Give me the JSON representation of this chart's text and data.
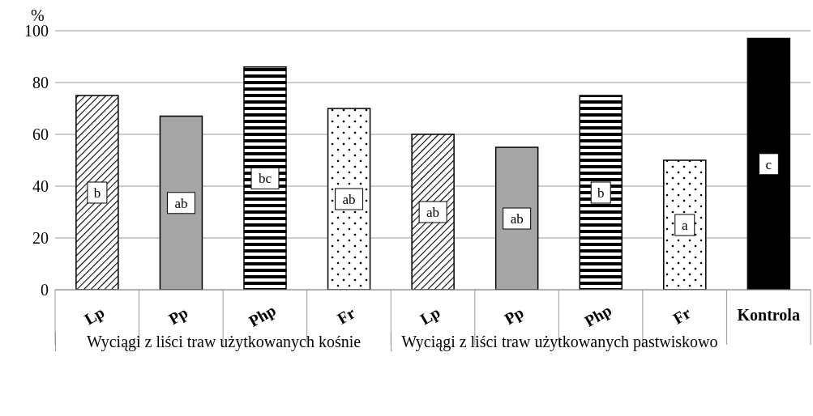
{
  "chart_data": {
    "type": "bar",
    "ylabel": "%",
    "categories": [
      "Lp",
      "Pp",
      "Php",
      "Fr",
      "Lp",
      "Pp",
      "Php",
      "Fr",
      "Kontrola"
    ],
    "values": [
      75,
      67,
      86,
      70,
      60,
      55,
      75,
      50,
      97
    ],
    "colors": [
      "#000000",
      "#a6a6a6",
      "#000000",
      "#000000",
      "#000000",
      "#a6a6a6",
      "#000000",
      "#000000",
      "#000000"
    ],
    "value_labels": [
      "b",
      "ab",
      "bc",
      "ab",
      "ab",
      "ab",
      "b",
      "a",
      "c"
    ],
    "annotations": [
      "Wyciągi z liści traw użytkowanych kośnie",
      "Wyciągi z liści traw użytkowanych pastwiskowo"
    ],
    "ylim": [
      0,
      100
    ],
    "yticks": [
      0,
      20,
      40,
      60,
      80,
      100
    ],
    "grid": "y",
    "legend": false
  }
}
